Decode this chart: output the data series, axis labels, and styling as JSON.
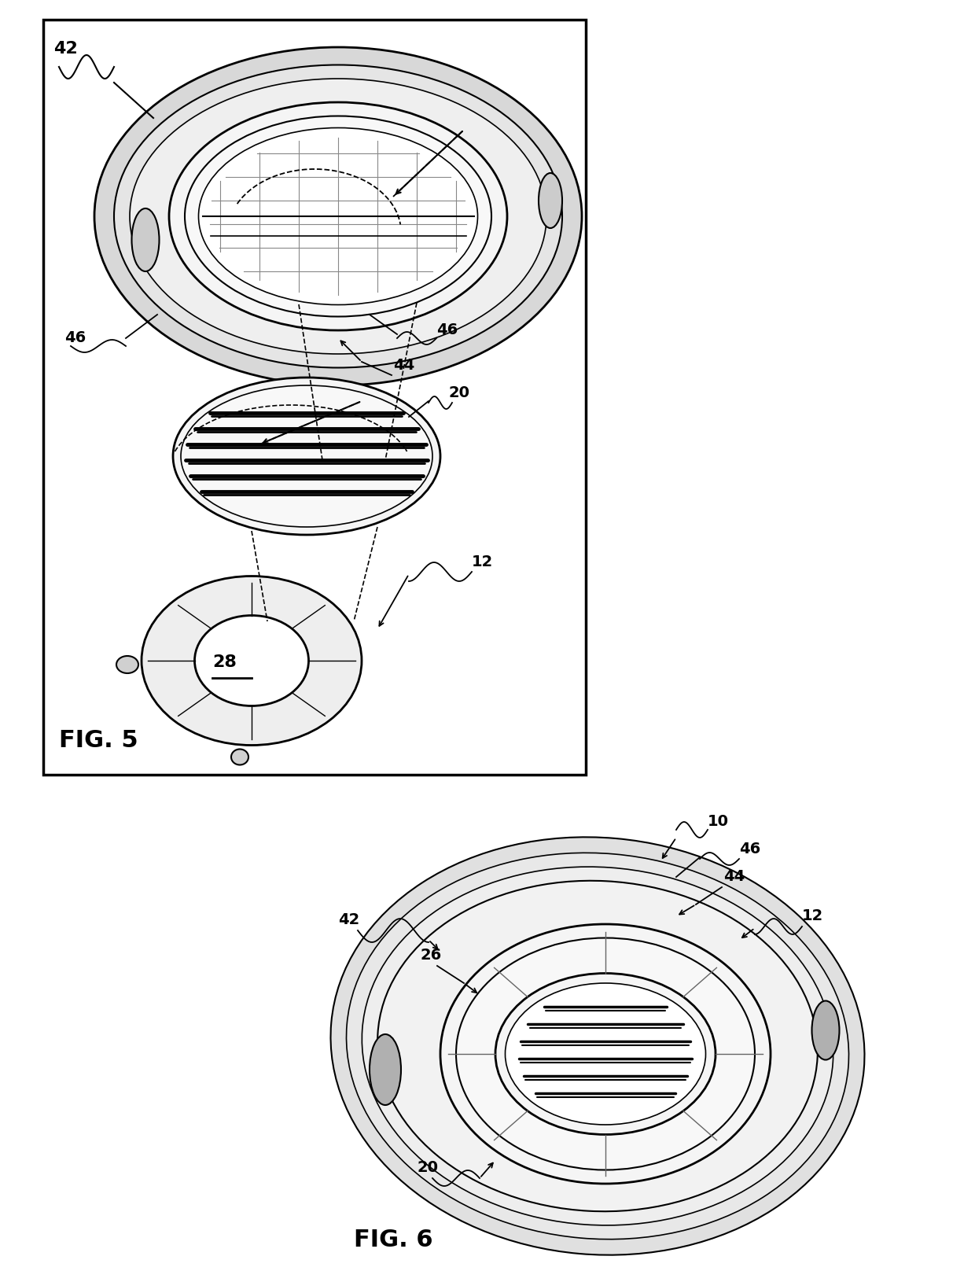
{
  "background_color": "#ffffff",
  "fig_width": 12.4,
  "fig_height": 16.3,
  "line_color": "#000000",
  "labels": {
    "fig5": "FIG. 5",
    "fig6": "FIG. 6",
    "n42": "42",
    "n46_left": "46",
    "n46_right": "46",
    "n44": "44",
    "n20": "20",
    "n12": "12",
    "n28": "28",
    "n10": "10",
    "n46_r2": "46",
    "n44_r2": "44",
    "n12_r2": "12",
    "n42_r2": "42",
    "n26": "26",
    "n20_r2": "20"
  }
}
